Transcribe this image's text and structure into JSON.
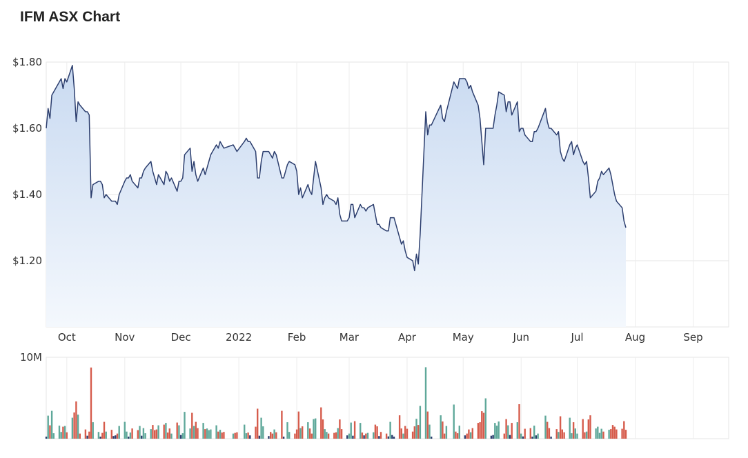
{
  "title": "IFM ASX Chart",
  "chart_data": [
    {
      "type": "area",
      "title": "IFM ASX Chart",
      "y_tick_labels": [
        "$1.80",
        "$1.60",
        "$1.40",
        "$1.20"
      ],
      "y_ticks": [
        1.8,
        1.6,
        1.4,
        1.2
      ],
      "ylim": [
        1.0,
        1.8
      ],
      "x_tick_labels": [
        "Oct",
        "Nov",
        "Dec",
        "2022",
        "Feb",
        "Mar",
        "Apr",
        "May",
        "Jun",
        "Jul",
        "Aug",
        "Sep"
      ],
      "x_tick_dates": [
        "2021-10-01",
        "2021-11-01",
        "2021-12-01",
        "2022-01-01",
        "2022-02-01",
        "2022-03-01",
        "2022-04-01",
        "2022-05-01",
        "2022-06-01",
        "2022-07-01",
        "2022-08-01",
        "2022-09-01"
      ],
      "x_range": [
        "2021-09-20",
        "2022-09-20"
      ],
      "grid": true,
      "line_color": "#2c3e6e",
      "fill_top_color": "#c9daf1",
      "fill_bottom_color": "#f4f8fd",
      "series": [
        {
          "points": [
            [
              "2021-09-20",
              1.6
            ],
            [
              "2021-09-21",
              1.66
            ],
            [
              "2021-09-22",
              1.63
            ],
            [
              "2021-09-23",
              1.7
            ],
            [
              "2021-09-24",
              1.71
            ],
            [
              "2021-09-27",
              1.74
            ],
            [
              "2021-09-28",
              1.75
            ],
            [
              "2021-09-29",
              1.72
            ],
            [
              "2021-09-30",
              1.75
            ],
            [
              "2021-10-01",
              1.74
            ],
            [
              "2021-10-04",
              1.79
            ],
            [
              "2021-10-05",
              1.72
            ],
            [
              "2021-10-06",
              1.62
            ],
            [
              "2021-10-07",
              1.68
            ],
            [
              "2021-10-08",
              1.67
            ],
            [
              "2021-10-11",
              1.65
            ],
            [
              "2021-10-12",
              1.65
            ],
            [
              "2021-10-13",
              1.64
            ],
            [
              "2021-10-14",
              1.39
            ],
            [
              "2021-10-15",
              1.43
            ],
            [
              "2021-10-18",
              1.44
            ],
            [
              "2021-10-19",
              1.44
            ],
            [
              "2021-10-20",
              1.43
            ],
            [
              "2021-10-21",
              1.39
            ],
            [
              "2021-10-22",
              1.4
            ],
            [
              "2021-10-25",
              1.38
            ],
            [
              "2021-10-26",
              1.38
            ],
            [
              "2021-10-27",
              1.38
            ],
            [
              "2021-10-28",
              1.37
            ],
            [
              "2021-10-29",
              1.4
            ],
            [
              "2021-11-01",
              1.44
            ],
            [
              "2021-11-02",
              1.45
            ],
            [
              "2021-11-03",
              1.45
            ],
            [
              "2021-11-04",
              1.46
            ],
            [
              "2021-11-05",
              1.44
            ],
            [
              "2021-11-08",
              1.42
            ],
            [
              "2021-11-09",
              1.45
            ],
            [
              "2021-11-10",
              1.45
            ],
            [
              "2021-11-11",
              1.47
            ],
            [
              "2021-11-12",
              1.48
            ],
            [
              "2021-11-15",
              1.5
            ],
            [
              "2021-11-16",
              1.47
            ],
            [
              "2021-11-17",
              1.45
            ],
            [
              "2021-11-18",
              1.43
            ],
            [
              "2021-11-19",
              1.46
            ],
            [
              "2021-11-22",
              1.43
            ],
            [
              "2021-11-23",
              1.47
            ],
            [
              "2021-11-24",
              1.46
            ],
            [
              "2021-11-25",
              1.44
            ],
            [
              "2021-11-26",
              1.45
            ],
            [
              "2021-11-29",
              1.41
            ],
            [
              "2021-11-30",
              1.44
            ],
            [
              "2021-12-01",
              1.44
            ],
            [
              "2021-12-02",
              1.45
            ],
            [
              "2021-12-03",
              1.52
            ],
            [
              "2021-12-06",
              1.54
            ],
            [
              "2021-12-07",
              1.47
            ],
            [
              "2021-12-08",
              1.5
            ],
            [
              "2021-12-09",
              1.46
            ],
            [
              "2021-12-10",
              1.44
            ],
            [
              "2021-12-13",
              1.48
            ],
            [
              "2021-12-14",
              1.46
            ],
            [
              "2021-12-15",
              1.48
            ],
            [
              "2021-12-16",
              1.5
            ],
            [
              "2021-12-17",
              1.52
            ],
            [
              "2021-12-20",
              1.55
            ],
            [
              "2021-12-21",
              1.54
            ],
            [
              "2021-12-22",
              1.56
            ],
            [
              "2021-12-23",
              1.55
            ],
            [
              "2021-12-24",
              1.54
            ],
            [
              "2021-12-29",
              1.55
            ],
            [
              "2021-12-30",
              1.54
            ],
            [
              "2021-12-31",
              1.53
            ],
            [
              "2022-01-04",
              1.56
            ],
            [
              "2022-01-05",
              1.57
            ],
            [
              "2022-01-06",
              1.56
            ],
            [
              "2022-01-07",
              1.56
            ],
            [
              "2022-01-10",
              1.53
            ],
            [
              "2022-01-11",
              1.45
            ],
            [
              "2022-01-12",
              1.45
            ],
            [
              "2022-01-13",
              1.5
            ],
            [
              "2022-01-14",
              1.53
            ],
            [
              "2022-01-17",
              1.53
            ],
            [
              "2022-01-18",
              1.52
            ],
            [
              "2022-01-19",
              1.51
            ],
            [
              "2022-01-20",
              1.53
            ],
            [
              "2022-01-21",
              1.52
            ],
            [
              "2022-01-24",
              1.45
            ],
            [
              "2022-01-25",
              1.45
            ],
            [
              "2022-01-27",
              1.49
            ],
            [
              "2022-01-28",
              1.5
            ],
            [
              "2022-01-31",
              1.49
            ],
            [
              "2022-02-01",
              1.47
            ],
            [
              "2022-02-02",
              1.4
            ],
            [
              "2022-02-03",
              1.42
            ],
            [
              "2022-02-04",
              1.39
            ],
            [
              "2022-02-07",
              1.43
            ],
            [
              "2022-02-08",
              1.41
            ],
            [
              "2022-02-09",
              1.4
            ],
            [
              "2022-02-10",
              1.45
            ],
            [
              "2022-02-11",
              1.5
            ],
            [
              "2022-02-14",
              1.42
            ],
            [
              "2022-02-15",
              1.37
            ],
            [
              "2022-02-16",
              1.39
            ],
            [
              "2022-02-17",
              1.4
            ],
            [
              "2022-02-18",
              1.39
            ],
            [
              "2022-02-21",
              1.38
            ],
            [
              "2022-02-22",
              1.37
            ],
            [
              "2022-02-23",
              1.39
            ],
            [
              "2022-02-24",
              1.34
            ],
            [
              "2022-02-25",
              1.32
            ],
            [
              "2022-02-28",
              1.32
            ],
            [
              "2022-03-01",
              1.33
            ],
            [
              "2022-03-02",
              1.37
            ],
            [
              "2022-03-03",
              1.37
            ],
            [
              "2022-03-04",
              1.33
            ],
            [
              "2022-03-07",
              1.37
            ],
            [
              "2022-03-08",
              1.36
            ],
            [
              "2022-03-09",
              1.36
            ],
            [
              "2022-03-10",
              1.35
            ],
            [
              "2022-03-11",
              1.36
            ],
            [
              "2022-03-14",
              1.37
            ],
            [
              "2022-03-15",
              1.34
            ],
            [
              "2022-03-16",
              1.31
            ],
            [
              "2022-03-17",
              1.31
            ],
            [
              "2022-03-18",
              1.3
            ],
            [
              "2022-03-21",
              1.29
            ],
            [
              "2022-03-22",
              1.29
            ],
            [
              "2022-03-23",
              1.33
            ],
            [
              "2022-03-24",
              1.33
            ],
            [
              "2022-03-25",
              1.33
            ],
            [
              "2022-03-28",
              1.27
            ],
            [
              "2022-03-29",
              1.25
            ],
            [
              "2022-03-30",
              1.26
            ],
            [
              "2022-03-31",
              1.23
            ],
            [
              "2022-04-01",
              1.21
            ],
            [
              "2022-04-04",
              1.2
            ],
            [
              "2022-04-05",
              1.17
            ],
            [
              "2022-04-06",
              1.22
            ],
            [
              "2022-04-07",
              1.19
            ],
            [
              "2022-04-08",
              1.28
            ],
            [
              "2022-04-11",
              1.65
            ],
            [
              "2022-04-12",
              1.58
            ],
            [
              "2022-04-13",
              1.61
            ],
            [
              "2022-04-14",
              1.61
            ],
            [
              "2022-04-19",
              1.67
            ],
            [
              "2022-04-20",
              1.63
            ],
            [
              "2022-04-21",
              1.62
            ],
            [
              "2022-04-22",
              1.65
            ],
            [
              "2022-04-26",
              1.74
            ],
            [
              "2022-04-27",
              1.73
            ],
            [
              "2022-04-28",
              1.72
            ],
            [
              "2022-04-29",
              1.75
            ],
            [
              "2022-05-02",
              1.75
            ],
            [
              "2022-05-03",
              1.74
            ],
            [
              "2022-05-04",
              1.72
            ],
            [
              "2022-05-05",
              1.73
            ],
            [
              "2022-05-06",
              1.71
            ],
            [
              "2022-05-09",
              1.67
            ],
            [
              "2022-05-10",
              1.63
            ],
            [
              "2022-05-11",
              1.56
            ],
            [
              "2022-05-12",
              1.49
            ],
            [
              "2022-05-13",
              1.6
            ],
            [
              "2022-05-16",
              1.6
            ],
            [
              "2022-05-17",
              1.6
            ],
            [
              "2022-05-18",
              1.64
            ],
            [
              "2022-05-19",
              1.67
            ],
            [
              "2022-05-20",
              1.71
            ],
            [
              "2022-05-23",
              1.7
            ],
            [
              "2022-05-24",
              1.65
            ],
            [
              "2022-05-25",
              1.68
            ],
            [
              "2022-05-26",
              1.68
            ],
            [
              "2022-05-27",
              1.64
            ],
            [
              "2022-05-30",
              1.68
            ],
            [
              "2022-05-31",
              1.59
            ],
            [
              "2022-06-01",
              1.6
            ],
            [
              "2022-06-02",
              1.6
            ],
            [
              "2022-06-03",
              1.58
            ],
            [
              "2022-06-06",
              1.56
            ],
            [
              "2022-06-07",
              1.56
            ],
            [
              "2022-06-08",
              1.59
            ],
            [
              "2022-06-09",
              1.59
            ],
            [
              "2022-06-10",
              1.6
            ],
            [
              "2022-06-14",
              1.66
            ],
            [
              "2022-06-15",
              1.62
            ],
            [
              "2022-06-16",
              1.6
            ],
            [
              "2022-06-17",
              1.6
            ],
            [
              "2022-06-20",
              1.58
            ],
            [
              "2022-06-21",
              1.59
            ],
            [
              "2022-06-22",
              1.53
            ],
            [
              "2022-06-23",
              1.51
            ],
            [
              "2022-06-24",
              1.5
            ],
            [
              "2022-06-27",
              1.55
            ],
            [
              "2022-06-28",
              1.56
            ],
            [
              "2022-06-29",
              1.52
            ],
            [
              "2022-06-30",
              1.54
            ],
            [
              "2022-07-01",
              1.55
            ],
            [
              "2022-07-04",
              1.5
            ],
            [
              "2022-07-05",
              1.49
            ],
            [
              "2022-07-06",
              1.5
            ],
            [
              "2022-07-07",
              1.45
            ],
            [
              "2022-07-08",
              1.39
            ],
            [
              "2022-07-11",
              1.41
            ],
            [
              "2022-07-12",
              1.44
            ],
            [
              "2022-07-13",
              1.45
            ],
            [
              "2022-07-14",
              1.47
            ],
            [
              "2022-07-15",
              1.46
            ],
            [
              "2022-07-18",
              1.48
            ],
            [
              "2022-07-19",
              1.46
            ],
            [
              "2022-07-20",
              1.43
            ],
            [
              "2022-07-21",
              1.4
            ],
            [
              "2022-07-22",
              1.38
            ],
            [
              "2022-07-25",
              1.36
            ],
            [
              "2022-07-26",
              1.32
            ],
            [
              "2022-07-27",
              1.3
            ]
          ]
        }
      ]
    },
    {
      "type": "bar",
      "y_tick_labels": [
        "10M"
      ],
      "ylim": [
        0,
        10000000
      ],
      "up_color": "#5fa89a",
      "down_color": "#d65c4c",
      "neutral_color": "#2c3e6e"
    }
  ]
}
